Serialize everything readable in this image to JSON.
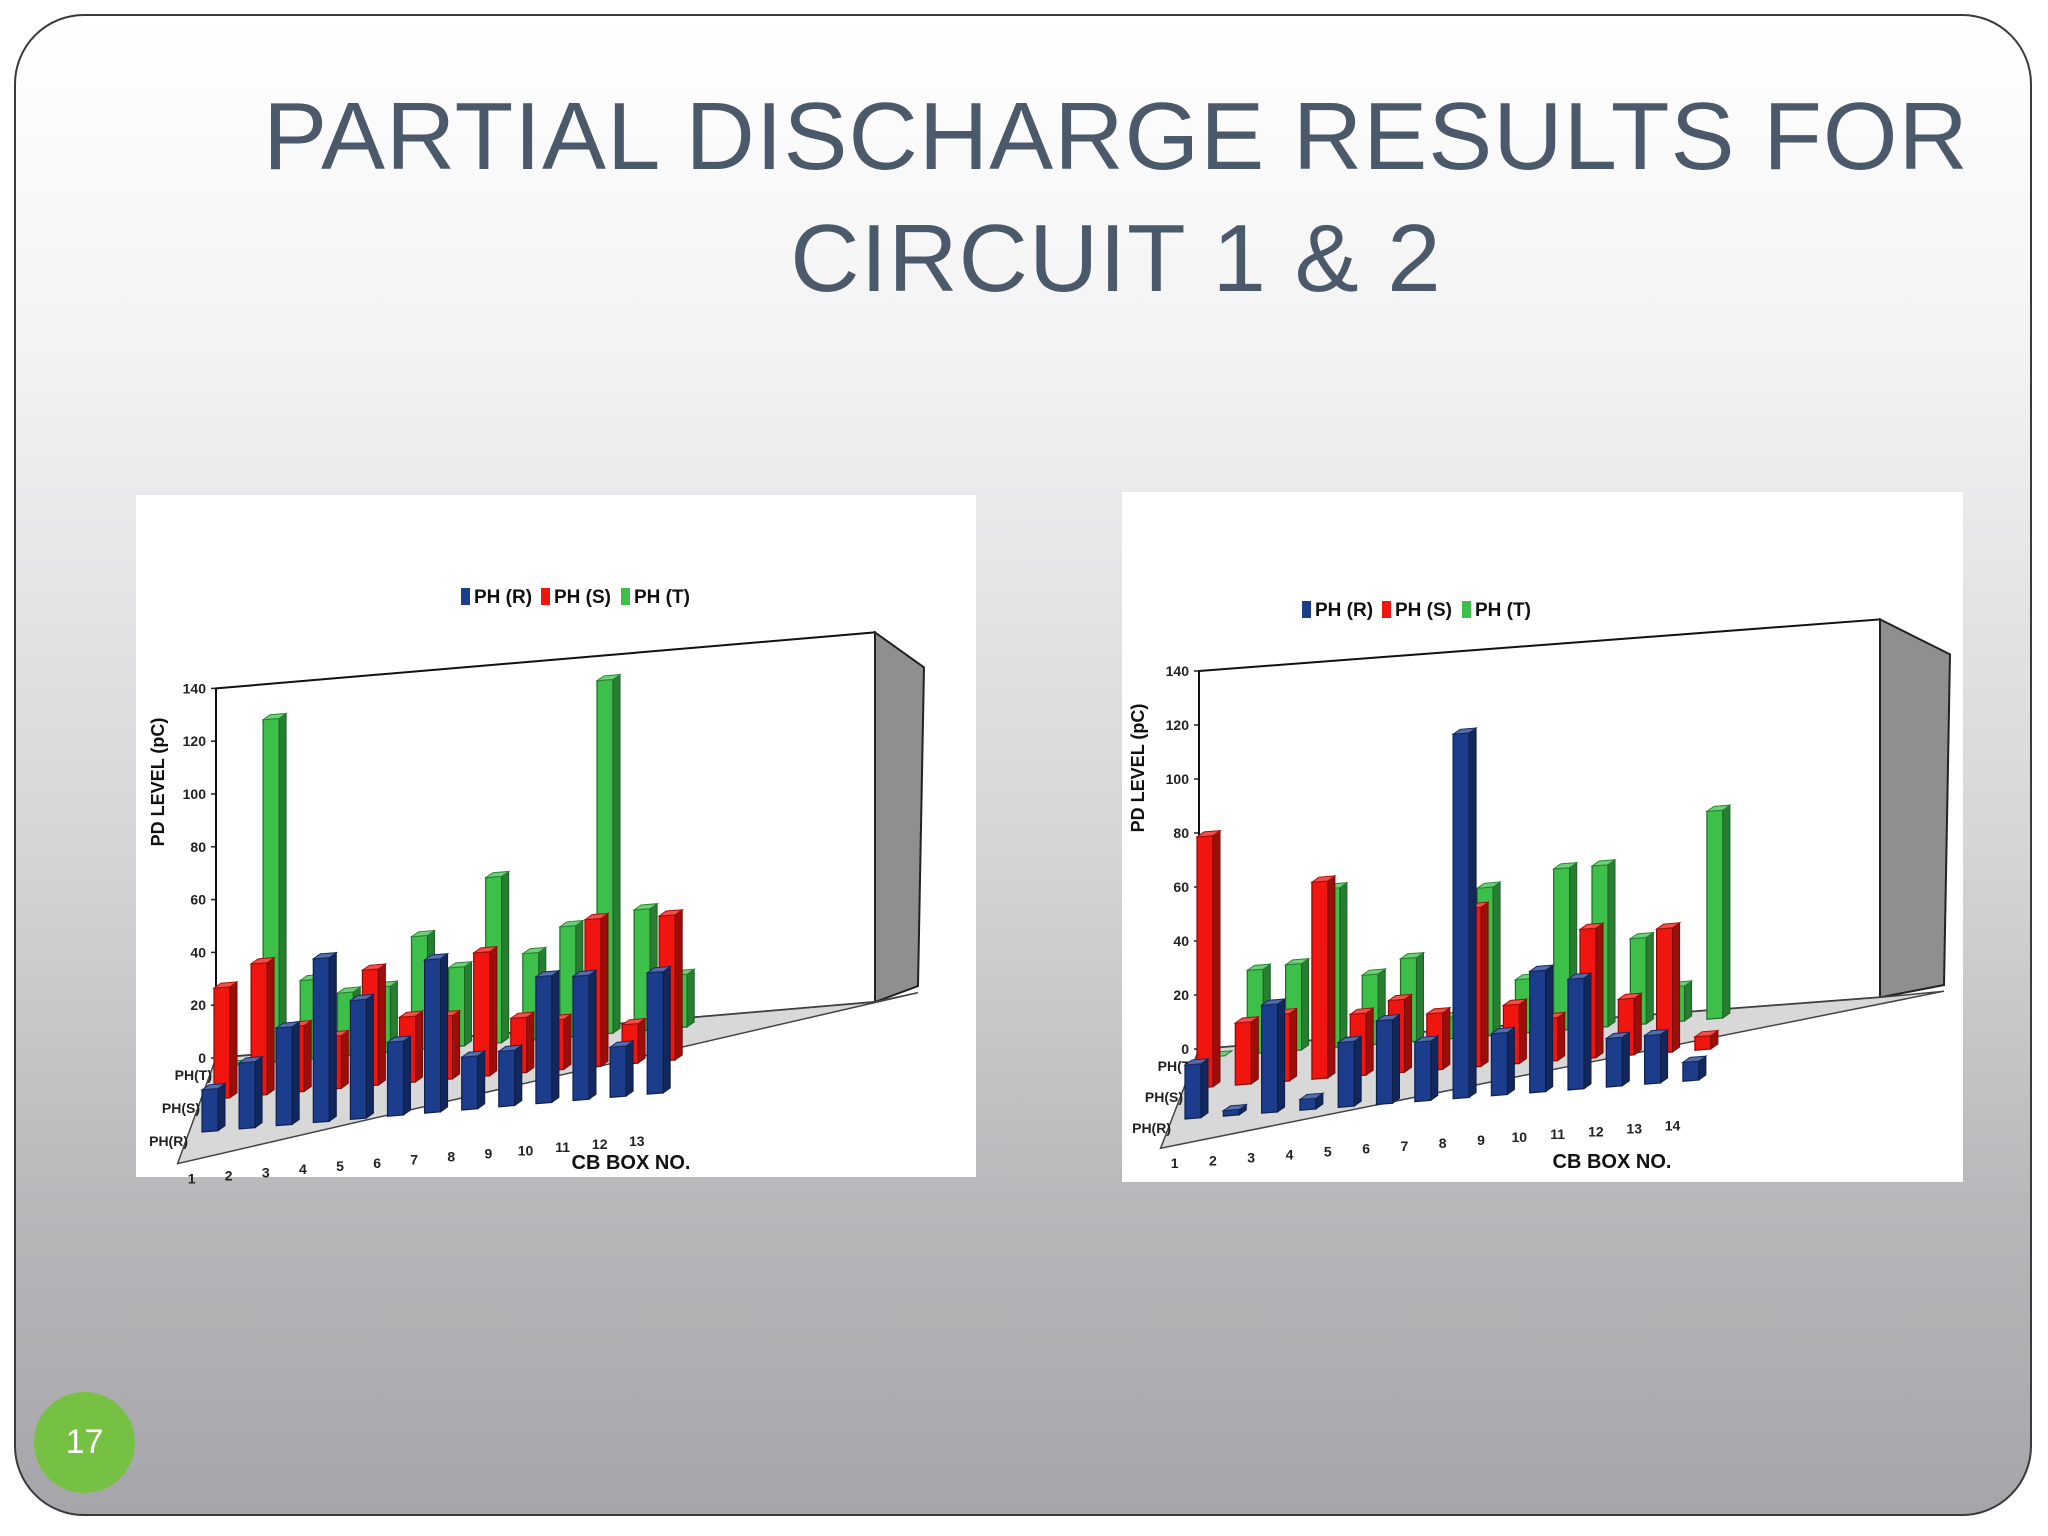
{
  "slide": {
    "title_line1": "PARTIAL DISCHARGE RESULTS FOR",
    "title_line2": "CIRCUIT 1 & 2",
    "page_number": "17"
  },
  "colors": {
    "title": "#4b5a6b",
    "badge": "#76c043",
    "PH (R)": "#1c3c8c",
    "PH (S)": "#f0160f",
    "PH (T)": "#3cc04a"
  },
  "chart_data": [
    {
      "type": "bar",
      "style": "3d-clustered",
      "title": "",
      "xlabel": "CB BOX NO.",
      "ylabel": "PD LEVEL (pC)",
      "ylim": [
        0,
        140
      ],
      "yticks": [
        "0",
        "20",
        "40",
        "60",
        "80",
        "100",
        "120",
        "140"
      ],
      "depth_labels": [
        "PH(T)",
        "PH(S)",
        "PH(R)"
      ],
      "categories": [
        "1",
        "2",
        "3",
        "4",
        "5",
        "6",
        "7",
        "8",
        "9",
        "10",
        "11",
        "12",
        "13"
      ],
      "legend_position": "top-center",
      "series": [
        {
          "name": "PH (R)",
          "values": [
            16,
            25,
            37,
            62,
            45,
            28,
            58,
            20,
            21,
            48,
            47,
            19,
            46
          ]
        },
        {
          "name": "PH (S)",
          "values": [
            42,
            50,
            25,
            20,
            44,
            25,
            24,
            47,
            21,
            19,
            56,
            15,
            55
          ]
        },
        {
          "name": "PH (T)",
          "values": [
            0,
            130,
            30,
            24,
            25,
            43,
            30,
            63,
            33,
            42,
            134,
            46,
            20
          ]
        }
      ]
    },
    {
      "type": "bar",
      "style": "3d-clustered",
      "title": "",
      "xlabel": "CB BOX NO.",
      "ylabel": "PD LEVEL (pC)",
      "ylim": [
        0,
        140
      ],
      "yticks": [
        "0",
        "20",
        "40",
        "60",
        "80",
        "100",
        "120",
        "140"
      ],
      "depth_labels": [
        "PH(T)",
        "PH(S)",
        "PH(R)"
      ],
      "categories": [
        "1",
        "2",
        "3",
        "4",
        "5",
        "6",
        "7",
        "8",
        "9",
        "10",
        "11",
        "12",
        "13",
        "14"
      ],
      "legend_position": "top-center",
      "series": [
        {
          "name": "PH (R)",
          "values": [
            20,
            2,
            40,
            4,
            24,
            31,
            22,
            135,
            23,
            45,
            41,
            18,
            18,
            7
          ]
        },
        {
          "name": "PH (S)",
          "values": [
            93,
            23,
            25,
            73,
            23,
            27,
            21,
            59,
            22,
            16,
            48,
            21,
            46,
            5
          ]
        },
        {
          "name": "PH (T)",
          "values": [
            0,
            31,
            32,
            59,
            26,
            31,
            8,
            55,
            20,
            60,
            60,
            32,
            13,
            77
          ]
        }
      ]
    }
  ]
}
